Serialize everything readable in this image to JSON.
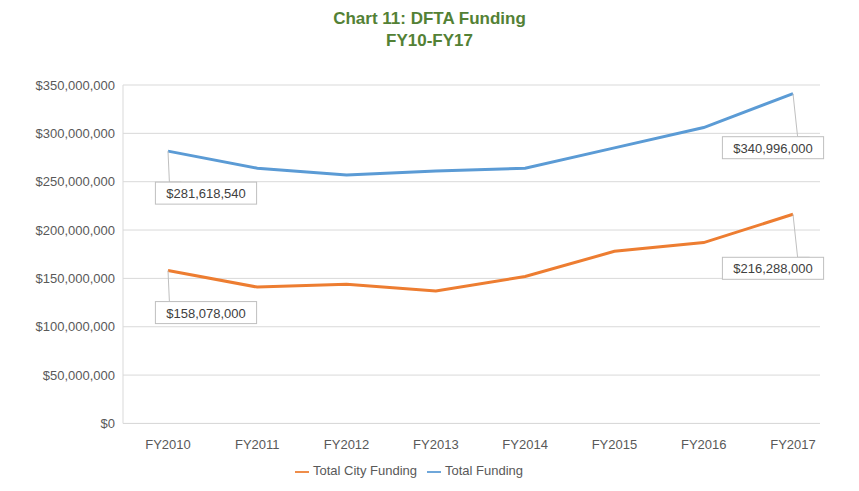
{
  "chart_data": {
    "type": "line",
    "title": "Chart 11: DFTA Funding",
    "subtitle": "FY10-FY17",
    "categories": [
      "FY2010",
      "FY2011",
      "FY2012",
      "FY2013",
      "FY2014",
      "FY2015",
      "FY2016",
      "FY2017"
    ],
    "series": [
      {
        "name": "Total Funding",
        "color": "#5b9bd5",
        "values": [
          281618540,
          264000000,
          257000000,
          261000000,
          264000000,
          285000000,
          306000000,
          340996000
        ],
        "value_labels": [
          "$281,618,540",
          null,
          null,
          null,
          null,
          null,
          null,
          "$340,996,000"
        ]
      },
      {
        "name": "Total City Funding",
        "color": "#ed7d31",
        "values": [
          158078000,
          141000000,
          144000000,
          137000000,
          152000000,
          178000000,
          187000000,
          216288000
        ],
        "value_labels": [
          "$158,078,000",
          null,
          null,
          null,
          null,
          null,
          null,
          "$216,288,000"
        ]
      }
    ],
    "ylim": [
      0,
      350000000
    ],
    "yticks": [
      {
        "value": 0,
        "label": "$0"
      },
      {
        "value": 50000000,
        "label": "$50,000,000"
      },
      {
        "value": 100000000,
        "label": "$100,000,000"
      },
      {
        "value": 150000000,
        "label": "$150,000,000"
      },
      {
        "value": 200000000,
        "label": "$200,000,000"
      },
      {
        "value": 250000000,
        "label": "$250,000,000"
      },
      {
        "value": 300000000,
        "label": "$300,000,000"
      },
      {
        "value": 350000000,
        "label": "$350,000,000"
      }
    ],
    "grid": true,
    "legend": "bottom"
  }
}
